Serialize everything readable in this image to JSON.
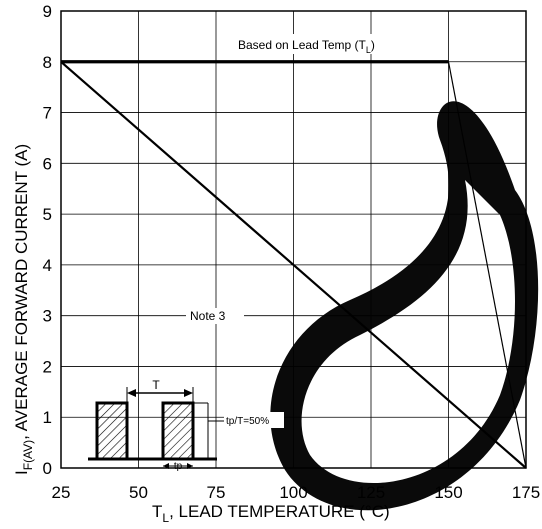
{
  "chart_data": {
    "type": "line",
    "x_tick_labels": [
      "25",
      "50",
      "75",
      "100",
      "125",
      "150",
      "175"
    ],
    "y_tick_labels": [
      "0",
      "1",
      "2",
      "3",
      "4",
      "5",
      "6",
      "7",
      "8",
      "9"
    ],
    "xlim": [
      25,
      175
    ],
    "ylim": [
      0,
      9
    ],
    "grid": true,
    "xlabel": {
      "main": "T",
      "sub": "L",
      "rest": ", LEAD TEMPERATURE (°C)"
    },
    "ylabel": {
      "main": "I",
      "sub": "F(AV)",
      "rest": ", AVERAGE FORWARD CURRENT (A)"
    },
    "series": [
      {
        "name": "Based on Lead Temp (TL)",
        "x": [
          25,
          150,
          175
        ],
        "y": [
          8,
          8,
          0
        ]
      },
      {
        "name": "Note 3",
        "x": [
          25,
          175
        ],
        "y": [
          8,
          0
        ]
      }
    ],
    "annotations": {
      "lead_temp": {
        "main": "Based on Lead Temp (T",
        "sub": "L",
        "end": ")"
      },
      "note3": "Note 3",
      "duty": "tp/T=50%",
      "period_label": "T",
      "pulse_label": "tp"
    }
  },
  "colors": {
    "line": "#000000",
    "grid": "#000000",
    "watermark": "#000000"
  }
}
